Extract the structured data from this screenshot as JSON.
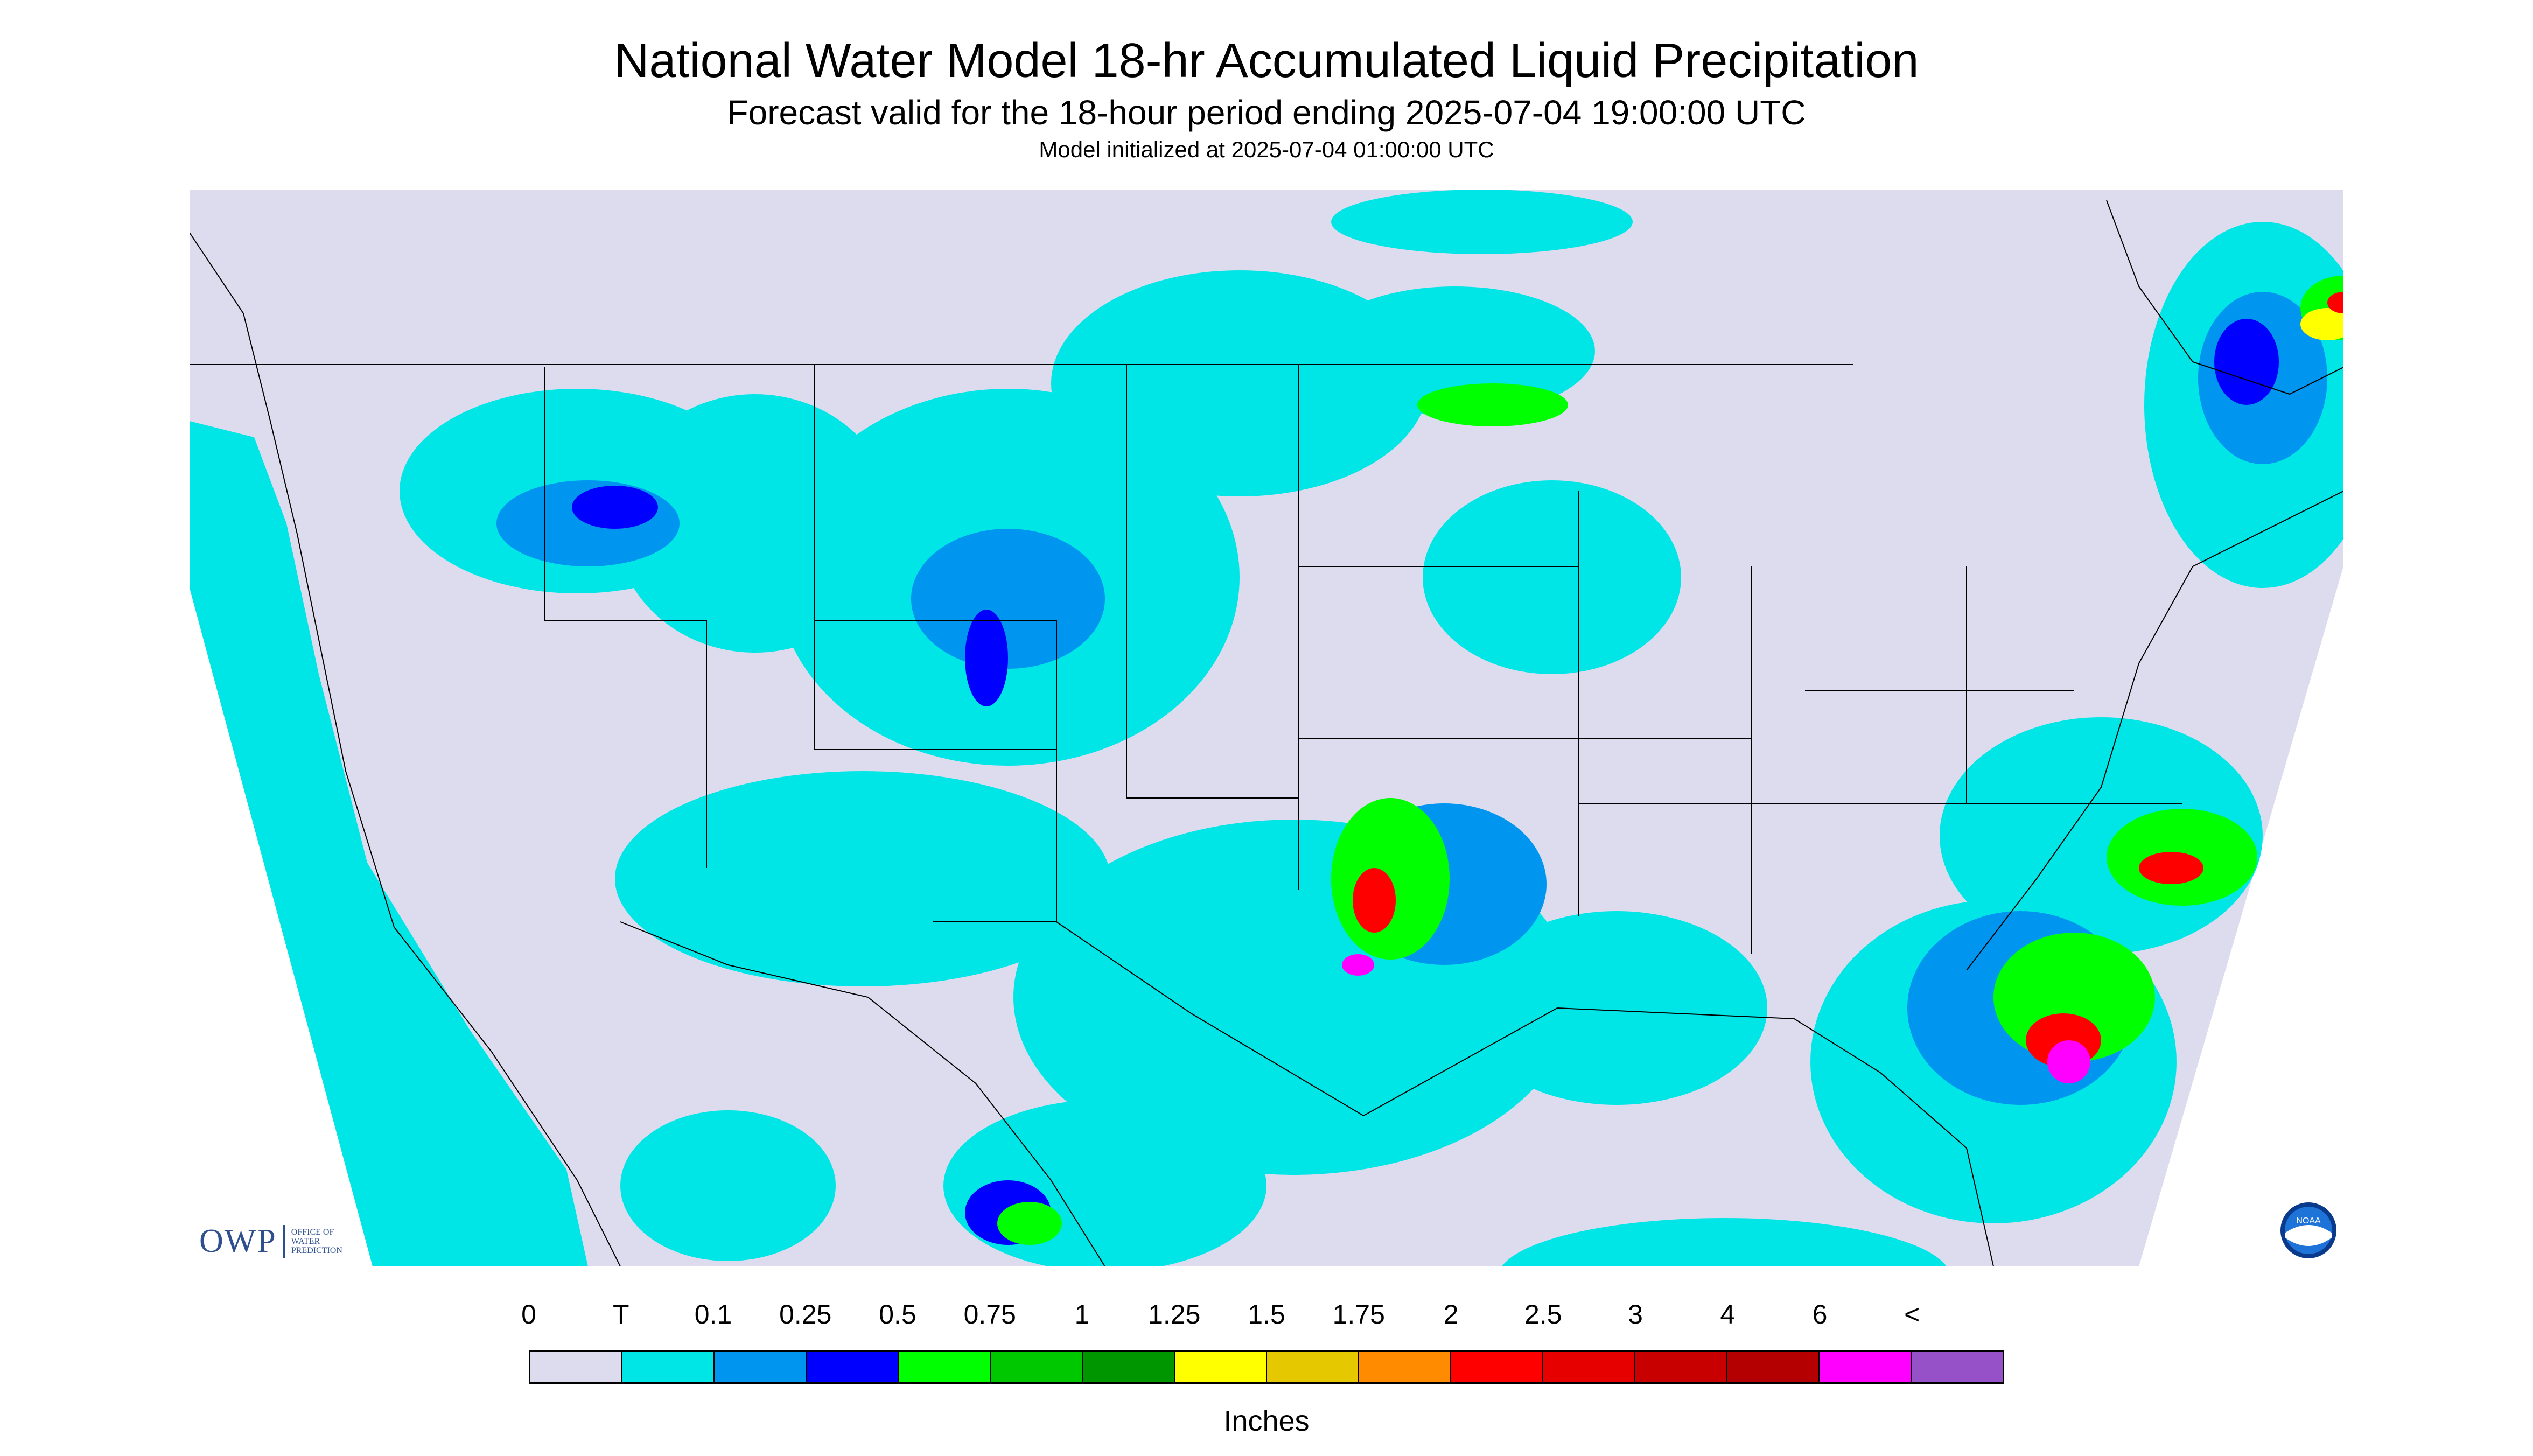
{
  "header": {
    "title": "National Water Model 18-hr Accumulated Liquid Precipitation",
    "subtitle": "Forecast valid for the 18-hour period ending 2025-07-04 19:00:00 UTC",
    "init": "Model initialized at 2025-07-04 01:00:00 UTC"
  },
  "map": {
    "background_color": "#dcdcee",
    "nodata_color": "#ffffff",
    "boundary_color": "#000000"
  },
  "legend": {
    "labels": [
      "0",
      "T",
      "0.1",
      "0.25",
      "0.5",
      "0.75",
      "1",
      "1.25",
      "1.5",
      "1.75",
      "2",
      "2.5",
      "3",
      "4",
      "6",
      "<"
    ],
    "colors": [
      "#dcdcee",
      "#00e6e6",
      "#0096f0",
      "#0000ff",
      "#00ff00",
      "#00c800",
      "#009600",
      "#ffff00",
      "#e6c800",
      "#ff8c00",
      "#ff0000",
      "#e60000",
      "#c80000",
      "#b40000",
      "#ff00ff",
      "#9650c8"
    ],
    "units": "Inches"
  },
  "logos": {
    "owp_mark": "OWP",
    "owp_text": "OFFICE OF\nWATER\nPREDICTION",
    "noaa_text": "NOAA"
  }
}
